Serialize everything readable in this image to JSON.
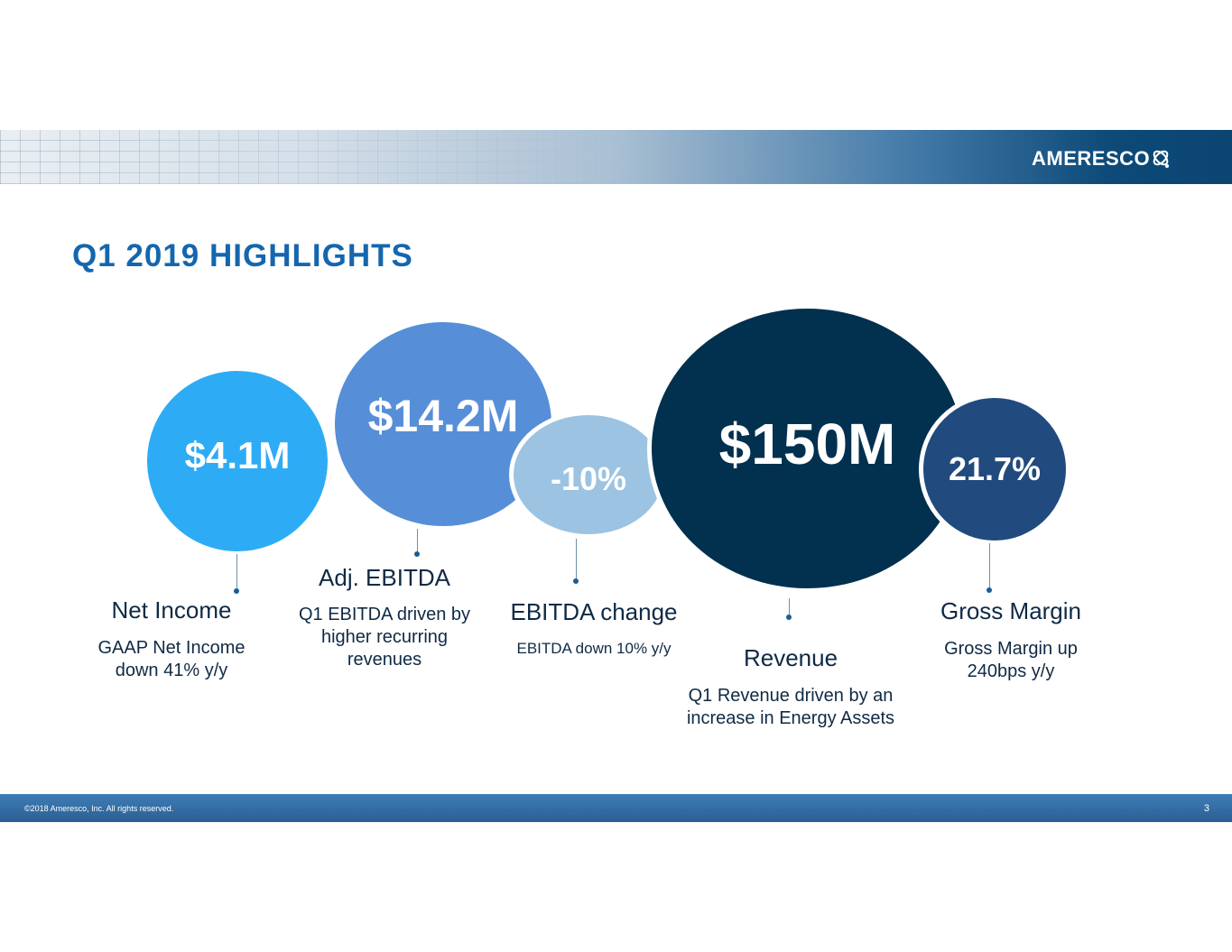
{
  "header": {
    "logo_text": "AMERESCO",
    "logo_icon": "orbit-logo-icon"
  },
  "title": "Q1 2019 HIGHLIGHTS",
  "colors": {
    "title": "#1466ae",
    "net_income": "#2eabf5",
    "ebitda": "#568fd8",
    "ebitda_change": "#9cc3e2",
    "revenue": "#02304f",
    "gross_margin": "#214a7e"
  },
  "metrics": [
    {
      "value": "$4.1M",
      "label": "Net Income",
      "desc": "GAAP Net Income down 41% y/y"
    },
    {
      "value": "$14.2M",
      "label": "Adj. EBITDA",
      "desc": "Q1 EBITDA driven by higher recurring revenues"
    },
    {
      "value": "-10%",
      "label": "EBITDA change",
      "desc": "EBITDA down 10% y/y"
    },
    {
      "value": "$150M",
      "label": "Revenue",
      "desc": "Q1 Revenue driven by an increase in Energy Assets"
    },
    {
      "value": "21.7%",
      "label": "Gross Margin",
      "desc": "Gross Margin up 240bps y/y"
    }
  ],
  "footer": {
    "copyright": "©2018 Ameresco, Inc. All rights reserved.",
    "page": "3"
  }
}
